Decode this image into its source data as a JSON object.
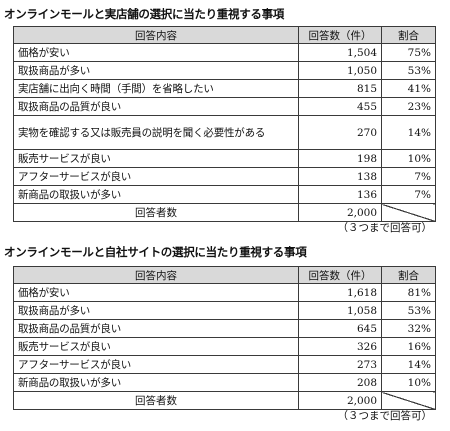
{
  "table1": {
    "title": "オンラインモールと実店舗の選択に当たり重視する事項",
    "headers": [
      "回答内容",
      "回答数（件）",
      "割合"
    ],
    "rows": [
      {
        "item": "価格が安い",
        "count": "1,504",
        "pct": "75%"
      },
      {
        "item": "取扱商品が多い",
        "count": "1,050",
        "pct": "53%"
      },
      {
        "item": "実店舗に出向く時間（手間）を省略したい",
        "count": "815",
        "pct": "41%"
      },
      {
        "item": "取扱商品の品質が良い",
        "count": "455",
        "pct": "23%"
      },
      {
        "item": "実物を確認する又は販売員の説明を聞く必要性がある",
        "count": "270",
        "pct": "14%"
      },
      {
        "item": "販売サービスが良い",
        "count": "198",
        "pct": "10%"
      },
      {
        "item": "アフターサービスが良い",
        "count": "138",
        "pct": "7%"
      },
      {
        "item": "新商品の取扱いが多い",
        "count": "136",
        "pct": "7%"
      }
    ],
    "total_label": "回答者数",
    "total_count": "2,000",
    "note": "（３つまで回答可）"
  },
  "table2": {
    "title": "オンラインモールと自社サイトの選択に当たり重視する事項",
    "headers": [
      "回答内容",
      "回答数（件）",
      "割合"
    ],
    "rows": [
      {
        "item": "価格が安い",
        "count": "1,618",
        "pct": "81%"
      },
      {
        "item": "取扱商品が多い",
        "count": "1,058",
        "pct": "53%"
      },
      {
        "item": "取扱商品の品質が良い",
        "count": "645",
        "pct": "32%"
      },
      {
        "item": "販売サービスが良い",
        "count": "326",
        "pct": "16%"
      },
      {
        "item": "アフターサービスが良い",
        "count": "273",
        "pct": "14%"
      },
      {
        "item": "新商品の取扱いが多い",
        "count": "208",
        "pct": "10%"
      }
    ],
    "total_label": "回答者数",
    "total_count": "2,000",
    "note": "（３つまで回答可）"
  }
}
